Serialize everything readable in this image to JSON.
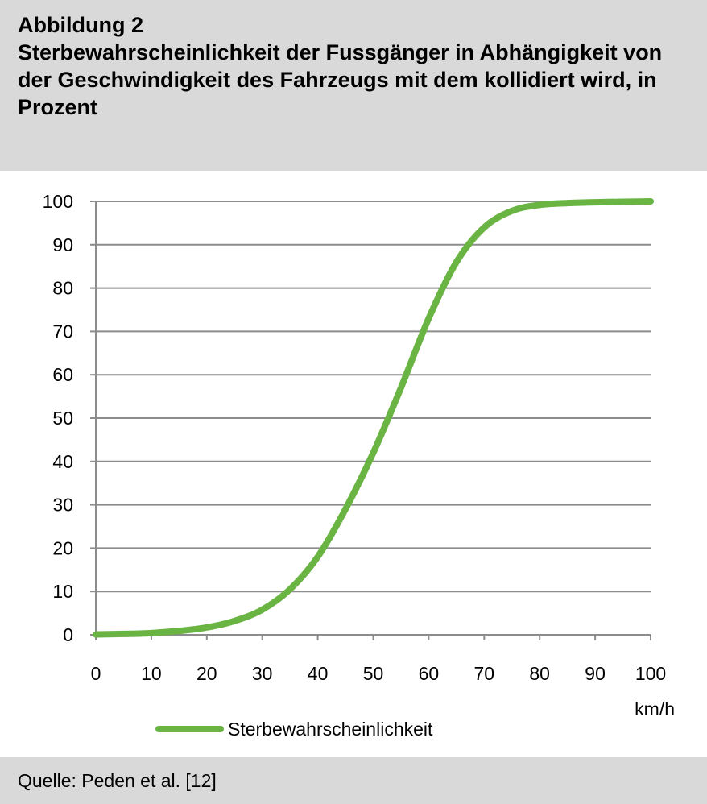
{
  "figure": {
    "label": "Abbildung 2",
    "title": "Sterbewahrscheinlichkeit der Fussgänger in Abhängigkeit von der Geschwindigkeit des Fahrzeugs mit dem kollidiert wird, in Prozent",
    "source": "Quelle: Peden et al. [12]"
  },
  "colors": {
    "line": "#6ab444",
    "grid": "#8c8c8c",
    "axis": "#8c8c8c",
    "frame_bg": "#d9d9d9"
  },
  "chart_data": {
    "type": "line",
    "title": "",
    "xlabel": "km/h",
    "ylabel": "",
    "xlim": [
      0,
      100
    ],
    "ylim": [
      0,
      100
    ],
    "x_ticks": [
      0,
      10,
      20,
      30,
      40,
      50,
      60,
      70,
      80,
      90,
      100
    ],
    "y_ticks": [
      0,
      10,
      20,
      30,
      40,
      50,
      60,
      70,
      80,
      90,
      100
    ],
    "grid": "horizontal",
    "legend": "bottom",
    "series": [
      {
        "name": "Sterbewahrscheinlichkeit",
        "x": [
          0,
          5,
          10,
          15,
          20,
          25,
          30,
          35,
          40,
          45,
          50,
          55,
          60,
          65,
          70,
          75,
          80,
          85,
          90,
          95,
          100
        ],
        "values": [
          0.1,
          0.2,
          0.4,
          0.9,
          1.7,
          3.2,
          5.8,
          10.5,
          18,
          29,
          42,
          57,
          73,
          86,
          94,
          97.8,
          99.2,
          99.6,
          99.8,
          99.9,
          100
        ]
      }
    ]
  }
}
